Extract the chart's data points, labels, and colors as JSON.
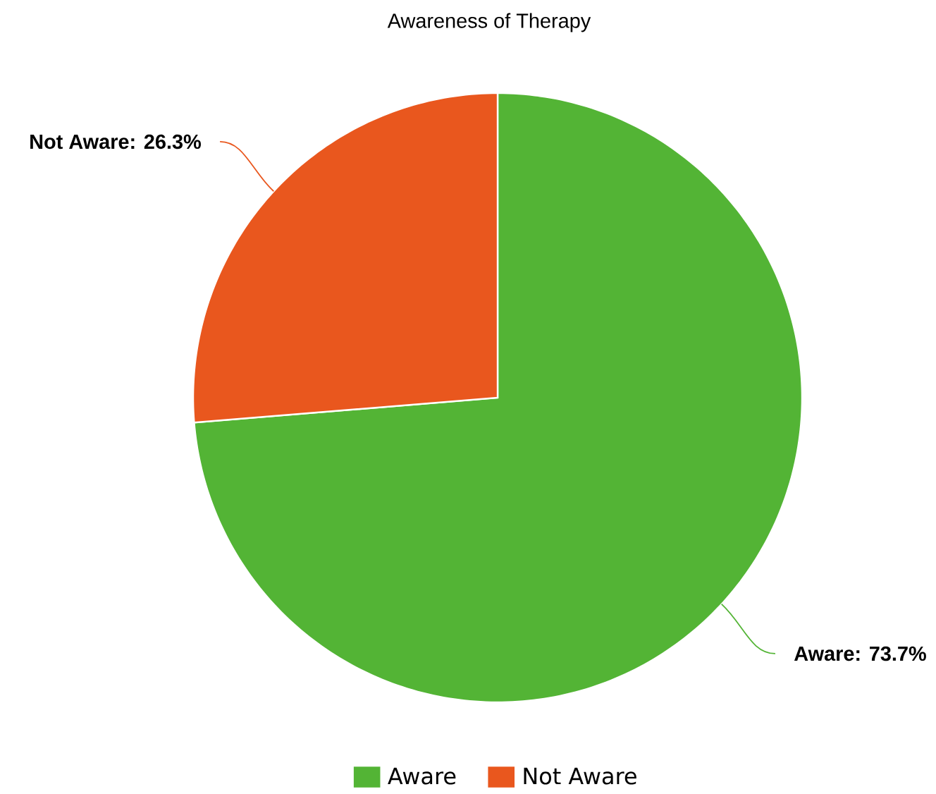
{
  "chart_data": {
    "type": "pie",
    "title": "Awareness of Therapy",
    "categories": [
      "Aware",
      "Not Aware"
    ],
    "values": [
      73.7,
      26.3
    ],
    "colors": [
      "#53b435",
      "#e9571e"
    ],
    "value_labels": [
      "Aware: 73.7%",
      "Not Aware: 26.3%"
    ],
    "legend": "bottom"
  }
}
